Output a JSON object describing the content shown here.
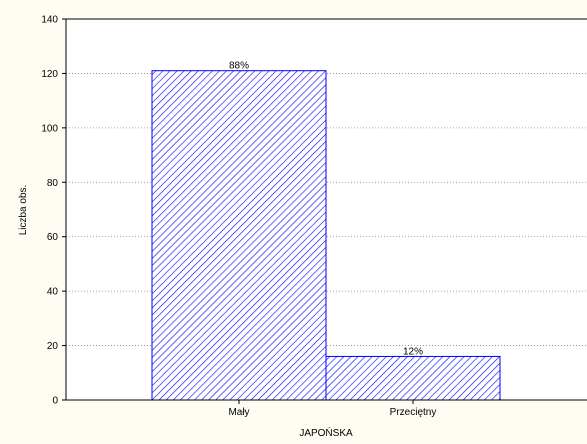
{
  "chart_data": {
    "type": "bar",
    "title": "",
    "xlabel": "JAPOŃSKA",
    "ylabel": "Liczba obs.",
    "categories": [
      "Mały",
      "Przeciętny"
    ],
    "values": [
      121,
      16
    ],
    "data_labels": [
      "88%",
      "12%"
    ],
    "ylim": [
      0,
      140
    ],
    "yticks": [
      0,
      20,
      40,
      60,
      80,
      100,
      120,
      140
    ],
    "grid": true,
    "legend": "none",
    "colors": {
      "bar_stroke": "#0000ff",
      "bar_hatch": "#0000ff",
      "bar_fill": "#ffffff",
      "plot_background": "#ffffff",
      "page_background": "#fefdf3",
      "grid": "#888888"
    }
  }
}
